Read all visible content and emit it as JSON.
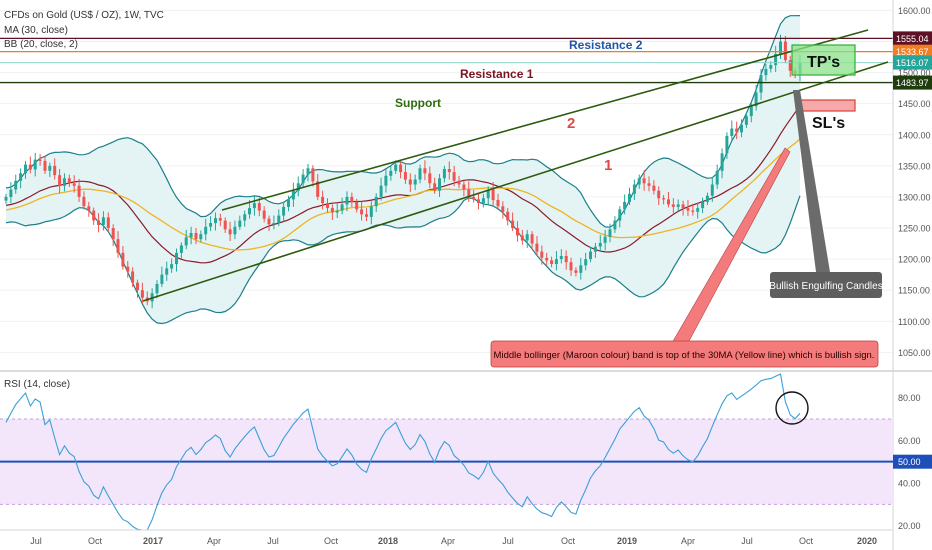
{
  "header": {
    "line1": "CFDs on Gold (US$ / OZ), 1W, TVC",
    "line2": "MA (30, close)",
    "line3": "BB (20, close, 2)"
  },
  "rsi_header": "RSI (14, close)",
  "colors": {
    "up": "#26a69a",
    "down": "#ef5350",
    "bb_band": "#1c7f8a",
    "bb_fill": "#e4f4f4",
    "bb_mid": "#8b1a2b",
    "ma30": "#f0b323",
    "trend": "#2e5a0e",
    "rsi_line": "#3aa0d8",
    "rsi_fill": "#f3e6fb",
    "rsi_mid": "#1e4fb8"
  },
  "annotations": {
    "resistance2": "Resistance 2",
    "resistance1": "Resistance 1",
    "support": "Support",
    "num1": "1",
    "num2": "2",
    "tps": "TP's",
    "sls": "SL's",
    "engulfing": "Bullish Engulfing Candles",
    "note": "Middle bollinger (Maroon colour) band is top of the 30MA (Yellow line) which is bullish sign."
  },
  "chart_data": [
    {
      "type": "candlestick",
      "title": "CFDs on Gold (US$ / OZ), 1W, TVC",
      "price_range": [
        1020,
        1615
      ],
      "x_ticks": [
        "Jul",
        "Oct",
        "2017",
        "Apr",
        "Jul",
        "Oct",
        "2018",
        "Apr",
        "Jul",
        "Oct",
        "2019",
        "Apr",
        "Jul",
        "Oct",
        "2020"
      ],
      "y_ticks": [
        1050,
        1100,
        1150,
        1200,
        1250,
        1300,
        1350,
        1400,
        1450,
        1500,
        1550,
        1600
      ],
      "price_labels": [
        {
          "value": "1555.04",
          "price": 1555.04,
          "color": "#5c1224"
        },
        {
          "value": "1533.67",
          "price": 1533.67,
          "color": "#ef7d22"
        },
        {
          "value": "1516.07",
          "price": 1516.07,
          "color": "#26a69a"
        },
        {
          "value": "1483.97",
          "price": 1483.97,
          "color": "#1f3d0c"
        }
      ],
      "horizontal_levels": [
        {
          "name": "Resistance 2",
          "price": 1555.04,
          "color": "#5c1224"
        },
        {
          "name": "Resistance 1",
          "price": 1533.67,
          "color": "#ef7d22"
        },
        {
          "name": "Support",
          "price": 1483.97,
          "color": "#1f3d0c"
        }
      ],
      "series": {
        "close": [
          1300,
          1312,
          1326,
          1338,
          1352,
          1344,
          1360,
          1358,
          1342,
          1350,
          1335,
          1318,
          1330,
          1322,
          1318,
          1300,
          1285,
          1278,
          1262,
          1255,
          1267,
          1250,
          1232,
          1210,
          1188,
          1180,
          1162,
          1150,
          1138,
          1132,
          1145,
          1160,
          1175,
          1185,
          1192,
          1210,
          1222,
          1235,
          1242,
          1232,
          1240,
          1252,
          1258,
          1266,
          1262,
          1248,
          1240,
          1252,
          1262,
          1272,
          1282,
          1290,
          1278,
          1265,
          1256,
          1258,
          1270,
          1284,
          1296,
          1310,
          1322,
          1336,
          1346,
          1325,
          1300,
          1290,
          1282,
          1275,
          1278,
          1288,
          1300,
          1292,
          1280,
          1272,
          1268,
          1285,
          1300,
          1318,
          1334,
          1342,
          1352,
          1340,
          1328,
          1320,
          1328,
          1346,
          1338,
          1322,
          1310,
          1330,
          1345,
          1340,
          1326,
          1320,
          1312,
          1300,
          1296,
          1290,
          1298,
          1312,
          1295,
          1285,
          1276,
          1262,
          1250,
          1238,
          1230,
          1240,
          1225,
          1212,
          1202,
          1198,
          1192,
          1200,
          1205,
          1195,
          1182,
          1178,
          1190,
          1200,
          1212,
          1220,
          1226,
          1236,
          1248,
          1262,
          1280,
          1292,
          1305,
          1320,
          1330,
          1322,
          1318,
          1310,
          1298,
          1296,
          1288,
          1284,
          1288,
          1282,
          1278,
          1276,
          1282,
          1292,
          1302,
          1320,
          1342,
          1370,
          1398,
          1410,
          1404,
          1416,
          1430,
          1446,
          1468,
          1496,
          1506,
          1512,
          1530,
          1550,
          1520,
          1503,
          1498,
          1516
        ]
      }
    },
    {
      "type": "line",
      "title": "RSI (14, close)",
      "y_ticks": [
        20,
        40,
        50,
        60,
        80
      ],
      "ylim": [
        18,
        92
      ],
      "mid_level_label": "50.00"
    }
  ]
}
